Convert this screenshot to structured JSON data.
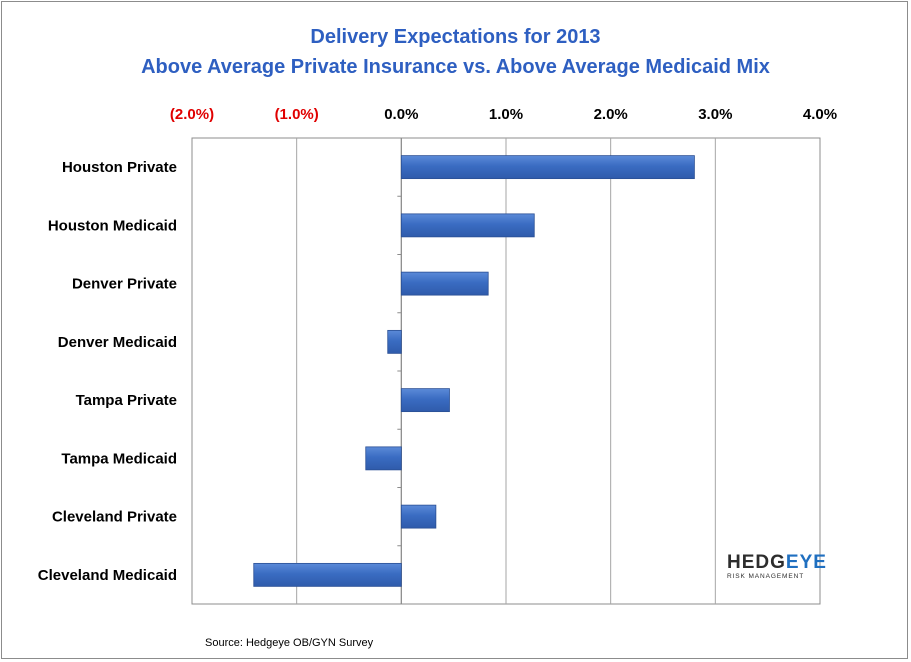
{
  "chart_data": {
    "type": "bar",
    "orientation": "horizontal",
    "title": "Delivery Expectations for 2013",
    "subtitle": "Above Average Private Insurance vs. Above Average Medicaid Mix",
    "categories": [
      "Houston Private",
      "Houston Medicaid",
      "Denver Private",
      "Denver Medicaid",
      "Tampa Private",
      "Tampa Medicaid",
      "Cleveland Private",
      "Cleveland Medicaid"
    ],
    "values": [
      2.8,
      1.27,
      0.83,
      -0.13,
      0.46,
      -0.34,
      0.33,
      -1.41
    ],
    "xlim": [
      -2.0,
      4.0
    ],
    "ticks": [
      -2.0,
      -1.0,
      0.0,
      1.0,
      2.0,
      3.0,
      4.0
    ],
    "tick_labels": [
      "(2.0%)",
      "(1.0%)",
      "0.0%",
      "1.0%",
      "2.0%",
      "3.0%",
      "4.0%"
    ],
    "axis_position": "top",
    "grid": true,
    "colors": {
      "bar": "#3a6cc2",
      "bar_edge": "#2a4f94",
      "title": "#2e5fc1",
      "negative_tick": "#e00000",
      "positive_tick": "#000000",
      "grid": "#a6a6a6"
    }
  },
  "source": "Source: Hedgeye OB/GYN Survey",
  "logo": {
    "main_a": "HEDG",
    "main_b": "EYE",
    "sub": "RISK MANAGEMENT"
  }
}
